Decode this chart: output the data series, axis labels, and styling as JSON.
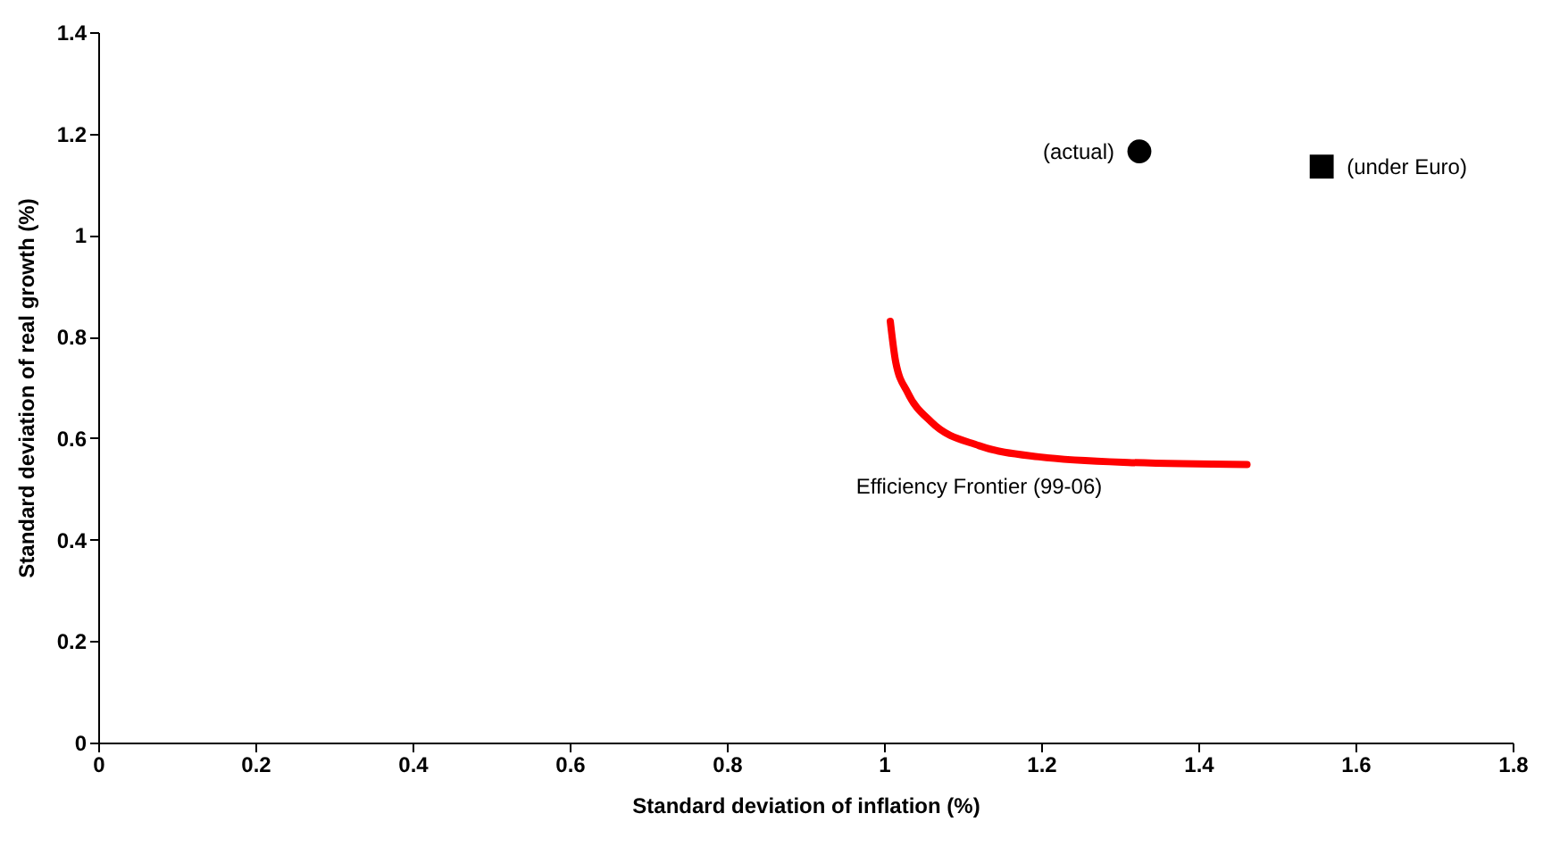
{
  "chart_data": {
    "type": "scatter",
    "xlabel": "Standard deviation of inflation (%)",
    "ylabel": "Standard deviation of real growth (%)",
    "xlim": [
      0,
      1.8
    ],
    "xticks": [
      0,
      0.2,
      0.4,
      0.6,
      0.8,
      1,
      1.2,
      1.4,
      1.6,
      1.8
    ],
    "ylim": [
      0,
      1.4
    ],
    "yticks": [
      0,
      0.2,
      0.4,
      0.6,
      0.8,
      1,
      1.2,
      1.4
    ],
    "grid": false,
    "series": [
      {
        "name": "Efficiency Frontier  (99-06)",
        "type": "line",
        "color": "#ff0000",
        "marker": "none",
        "x": [
          1.008,
          1.015,
          1.03,
          1.06,
          1.121,
          1.197,
          1.311,
          1.462
        ],
        "values": [
          0.83,
          0.749,
          0.69,
          0.632,
          0.585,
          0.563,
          0.552,
          0.548
        ]
      },
      {
        "name": "(actual)",
        "color": "#000000",
        "marker": "circle",
        "x": [
          1.325
        ],
        "values": [
          1.165
        ]
      },
      {
        "name": "(under Euro)",
        "color": "#000000",
        "marker": "square",
        "x": [
          1.557
        ],
        "values": [
          1.135
        ]
      }
    ]
  }
}
